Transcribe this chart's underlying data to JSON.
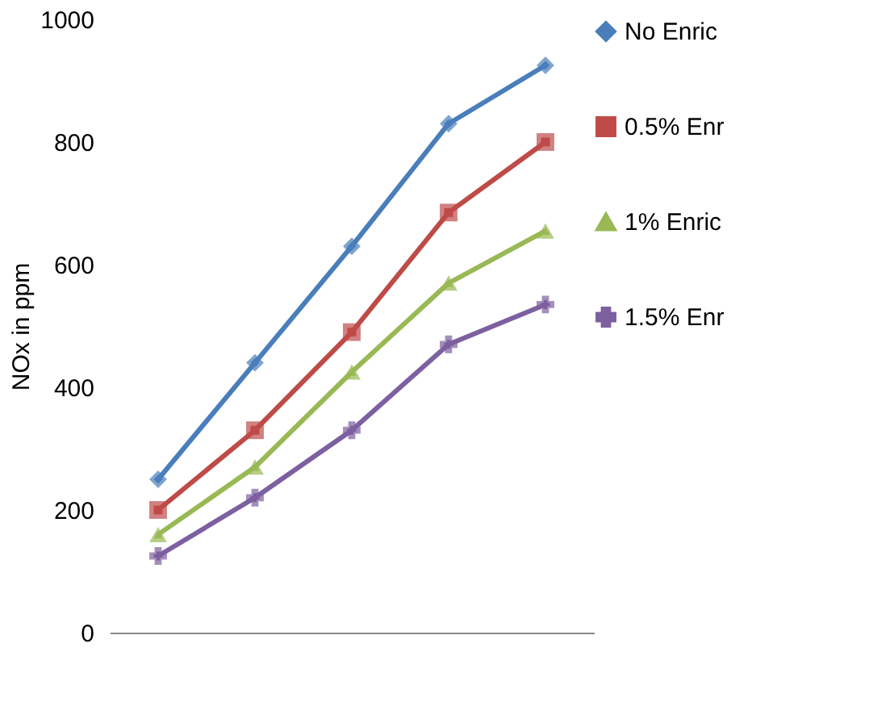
{
  "chart_data": {
    "type": "line",
    "ylabel": "NOx in ppm",
    "categories": [
      null,
      null,
      null,
      null,
      null
    ],
    "ylim": [
      0,
      1000
    ],
    "yticks": [
      0,
      200,
      400,
      600,
      800,
      1000
    ],
    "grid": false,
    "legend": "right",
    "tick_labels": "y",
    "line_style": "solid",
    "series": [
      {
        "name": "No Enric",
        "color": "#4a7ebb",
        "marker": "diamond",
        "values": [
          250,
          440,
          630,
          830,
          925
        ]
      },
      {
        "name": "0.5% Enr",
        "color": "#be4b48",
        "marker": "square",
        "values": [
          200,
          330,
          490,
          685,
          800
        ]
      },
      {
        "name": "1% Enric",
        "color": "#98b954",
        "marker": "triangle",
        "values": [
          160,
          270,
          425,
          570,
          655
        ]
      },
      {
        "name": "1.5% Enr",
        "color": "#7d60a0",
        "marker": "cross",
        "values": [
          125,
          220,
          330,
          470,
          535
        ]
      }
    ]
  }
}
